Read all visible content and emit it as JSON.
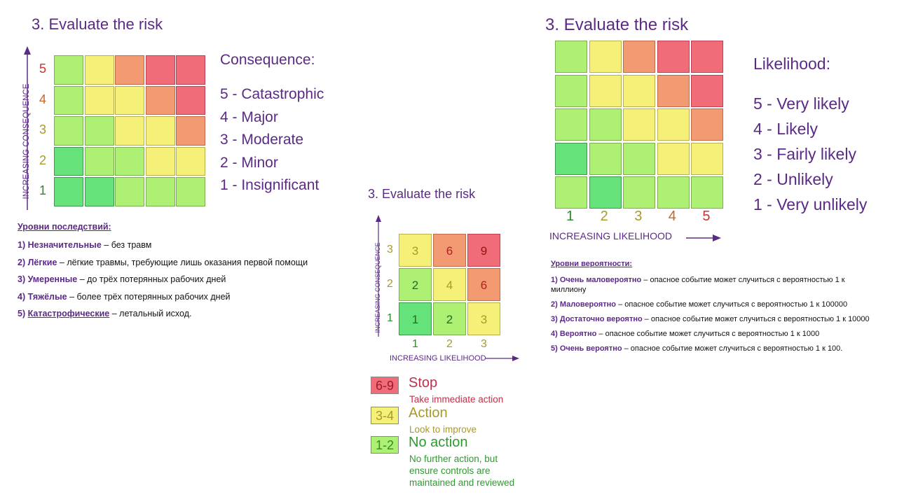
{
  "left_panel": {
    "title": "3. Evaluate the risk",
    "axis_label": "INCREASING CONSEQUENCE",
    "row_numbers": [
      "5",
      "4",
      "3",
      "2",
      "1"
    ],
    "legend_heading": "Consequence:",
    "legend_items": [
      "5 - Catastrophic",
      "4 - Major",
      "3 - Moderate",
      "2 - Minor",
      "1 - Insignificant"
    ],
    "ru_heading": "Уровни последствий:",
    "ru_items": [
      {
        "num": "1)",
        "term": "Незначительные",
        "desc": " – без травм"
      },
      {
        "num": "2)",
        "term": "Лёгкие",
        "desc": " – лёгкие травмы, требующие лишь оказания первой помощи"
      },
      {
        "num": "3)",
        "term": "Умеренные",
        "desc": " – до трёх потерянных рабочих дней"
      },
      {
        "num": "4)",
        "term": "Тяжёлые",
        "desc": " – более трёх потерянных рабочих дней"
      },
      {
        "num": "5)",
        "term": "Катастрофические",
        "desc": " – летальный исход."
      }
    ],
    "grid_colors": [
      [
        "lg",
        "y",
        "o",
        "r",
        "r"
      ],
      [
        "lg",
        "y",
        "y",
        "o",
        "r"
      ],
      [
        "lg",
        "lg",
        "y",
        "y",
        "o"
      ],
      [
        "dg",
        "lg",
        "lg",
        "y",
        "y"
      ],
      [
        "dg",
        "dg",
        "lg",
        "lg",
        "lg"
      ]
    ]
  },
  "center_panel": {
    "title": "3. Evaluate the risk",
    "y_axis_label": "INCREASING CONSEQUENCE",
    "x_axis_label": "INCREASING LIKELIHOOD",
    "row_numbers": [
      "3",
      "2",
      "1"
    ],
    "col_numbers": [
      "1",
      "2",
      "3"
    ],
    "grid": [
      [
        {
          "v": "3",
          "c": "y"
        },
        {
          "v": "6",
          "c": "o"
        },
        {
          "v": "9",
          "c": "r"
        }
      ],
      [
        {
          "v": "2",
          "c": "lg"
        },
        {
          "v": "4",
          "c": "y"
        },
        {
          "v": "6",
          "c": "o"
        }
      ],
      [
        {
          "v": "1",
          "c": "dg"
        },
        {
          "v": "2",
          "c": "lg"
        },
        {
          "v": "3",
          "c": "y"
        }
      ]
    ],
    "key": [
      {
        "range": "6-9",
        "title": "Stop",
        "desc": "Take immediate action",
        "c": "r"
      },
      {
        "range": "3-4",
        "title": "Action",
        "desc": "Look to improve",
        "c": "y"
      },
      {
        "range": "1-2",
        "title": "No action",
        "desc": "No further action, but ensure controls are maintained and reviewed",
        "c": "lg"
      }
    ]
  },
  "right_panel": {
    "title": "3. Evaluate the risk",
    "axis_label": "INCREASING LIKELIHOOD",
    "col_numbers": [
      "1",
      "2",
      "3",
      "4",
      "5"
    ],
    "legend_heading": "Likelihood:",
    "legend_items": [
      "5 - Very likely",
      "4 - Likely",
      "3 - Fairly likely",
      "2 - Unlikely",
      "1 - Very unlikely"
    ],
    "ru_heading": "Уровни вероятности:",
    "ru_items": [
      {
        "num": "1)",
        "term": "Очень маловероятно",
        "desc": " – опасное событие может случиться с вероятностью 1 к миллиону"
      },
      {
        "num": "2)",
        "term": "Маловероятно",
        "desc": " – опасное событие может случиться с вероятностью 1 к 100000"
      },
      {
        "num": "3)",
        "term": "Достаточно вероятно",
        "desc": " – опасное событие может случиться с вероятностью 1 к 10000"
      },
      {
        "num": "4)",
        "term": "Вероятно",
        "desc": " – опасное событие может случиться с вероятностью 1 к 1000"
      },
      {
        "num": "5)",
        "term": "Очень вероятно",
        "desc": " – опасное событие может случиться с вероятностью 1 к 100."
      }
    ],
    "grid_colors": [
      [
        "lg",
        "y",
        "o",
        "r",
        "r"
      ],
      [
        "lg",
        "y",
        "y",
        "o",
        "r"
      ],
      [
        "lg",
        "lg",
        "y",
        "y",
        "o"
      ],
      [
        "dg",
        "lg",
        "lg",
        "y",
        "y"
      ],
      [
        "lg",
        "dg",
        "lg",
        "lg",
        "lg"
      ]
    ]
  },
  "colors": {
    "dg": "#66e27a",
    "lg": "#aef074",
    "y": "#f5f078",
    "o": "#f29b72",
    "r": "#f06c78",
    "num_green": "#2e8b2e",
    "num_olive": "#a89a2a",
    "num_orange": "#c8662a",
    "num_red": "#d03030",
    "purple": "#5b2a86"
  }
}
